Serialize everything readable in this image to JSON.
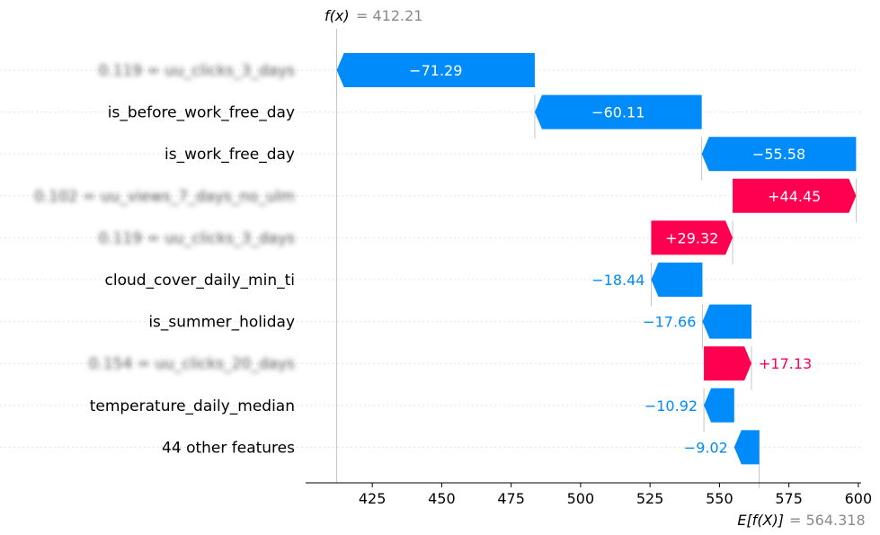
{
  "chart_data": {
    "type": "waterfall",
    "fx_label": "f(x)",
    "fx_value": "= 412.21",
    "fx": 412.21,
    "efx_label": "E[f(X)]",
    "efx_value": "= 564.318",
    "efx": 564.318,
    "xlim": [
      401,
      601
    ],
    "xticks": [
      425,
      450,
      475,
      500,
      525,
      550,
      575,
      600
    ],
    "colors": {
      "negative": "#008bfb",
      "positive": "#ff0051"
    },
    "features": [
      {
        "label": "0.119 = uu_clicks_3_days",
        "blurred": true,
        "start": 483.5,
        "value": -71.29,
        "text": "−71.29"
      },
      {
        "label": "is_before_work_free_day",
        "blurred": false,
        "start": 543.61,
        "value": -60.11,
        "text": "−60.11"
      },
      {
        "label": "is_work_free_day",
        "blurred": false,
        "start": 599.19,
        "value": -55.58,
        "text": "−55.58"
      },
      {
        "label": "0.102 = uu_views_7_days_no_ulm",
        "blurred": true,
        "start": 554.74,
        "value": 44.45,
        "text": "+44.45"
      },
      {
        "label": "0.119 = uu_clicks_3_days",
        "blurred": true,
        "start": 525.42,
        "value": 29.32,
        "text": "+29.32"
      },
      {
        "label": "cloud_cover_daily_min_ti",
        "blurred": false,
        "start": 543.86,
        "value": -18.44,
        "text": "−18.44"
      },
      {
        "label": "is_summer_holiday",
        "blurred": false,
        "start": 561.52,
        "value": -17.66,
        "text": "−17.66"
      },
      {
        "label": "0.154 = uu_clicks_20_days",
        "blurred": true,
        "start": 544.39,
        "value": 17.13,
        "text": "+17.13"
      },
      {
        "label": "temperature_daily_median",
        "blurred": false,
        "start": 555.31,
        "value": -10.92,
        "text": "−10.92"
      },
      {
        "label": "44 other features",
        "blurred": false,
        "start": 564.33,
        "value": -9.02,
        "text": "−9.02"
      }
    ]
  }
}
